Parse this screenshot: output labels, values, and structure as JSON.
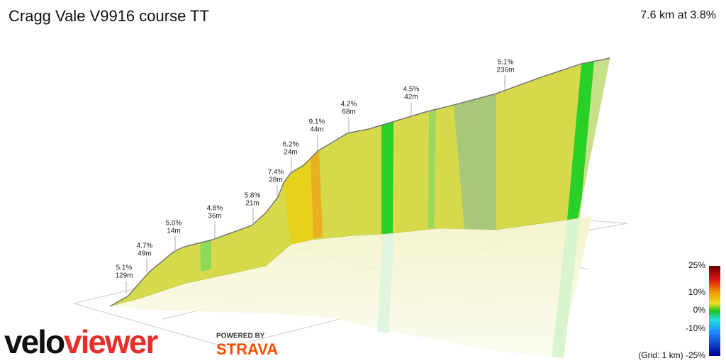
{
  "header": {
    "title": "Cragg Vale V9916 course TT",
    "summary": "7.6 km at 3.8%"
  },
  "annotations": [
    {
      "grade": "5.1%",
      "length": "129m"
    },
    {
      "grade": "4.7%",
      "length": "49m"
    },
    {
      "grade": "5.0%",
      "length": "14m"
    },
    {
      "grade": "4.8%",
      "length": "36m"
    },
    {
      "grade": "5.8%",
      "length": "21m"
    },
    {
      "grade": "7.4%",
      "length": "28m"
    },
    {
      "grade": "6.2%",
      "length": "24m"
    },
    {
      "grade": "9.1%",
      "length": "44m"
    },
    {
      "grade": "4.2%",
      "length": "68m"
    },
    {
      "grade": "4.5%",
      "length": "42m"
    },
    {
      "grade": "5.1%",
      "length": "236m"
    }
  ],
  "legend": {
    "labels": [
      "25%",
      "10%",
      "0%",
      "-10%",
      "(Grid: 1 km) -25%"
    ]
  },
  "branding": {
    "velo": "velo",
    "viewer": "viewer",
    "powered": "POWERED BY",
    "strava": "STRAVA"
  }
}
